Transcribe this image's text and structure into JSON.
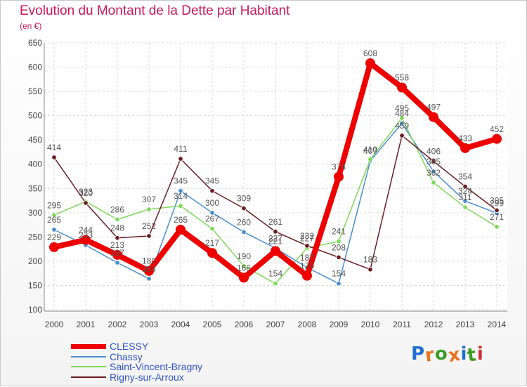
{
  "header": {
    "title": "Evolution du Montant de la Dette par Habitant",
    "subtitle": "(en €)"
  },
  "brand": {
    "logo_letters": [
      "P",
      "r",
      "o",
      "x",
      "i",
      "t",
      "i"
    ],
    "logo_colors": [
      "#1f6fd1",
      "#e8731e",
      "#3a9d23",
      "#e8731e",
      "#1f6fd1",
      "#3a9d23",
      "#d12f2f"
    ]
  },
  "chart_data": {
    "type": "line",
    "title": "Evolution du Montant de la Dette par Habitant",
    "ylabel": "(en €)",
    "xlabel": "",
    "x": [
      "2000",
      "2001",
      "2002",
      "2003",
      "2004",
      "2005",
      "2006",
      "2007",
      "2008",
      "2009",
      "2010",
      "2011",
      "2012",
      "2013",
      "2014"
    ],
    "ylim": [
      100,
      650
    ],
    "yticks": [
      100,
      150,
      200,
      250,
      300,
      350,
      400,
      450,
      500,
      550,
      600,
      650
    ],
    "grid": true,
    "legend": "bottom-left",
    "series": [
      {
        "name": "CLESSY",
        "color": "#ee0000",
        "values": [
          229,
          244,
          213,
          180,
          265,
          217,
          166,
          221,
          170,
          374,
          608,
          558,
          497,
          433,
          452
        ],
        "labels": [
          "229",
          "244",
          "213",
          "180",
          "265",
          "217",
          "166",
          "221",
          "170",
          "374",
          "608",
          "558",
          "497",
          "433",
          "452"
        ]
      },
      {
        "name": "Chassy",
        "color": "#4a8ed0",
        "values": [
          265,
          233,
          197,
          164,
          345,
          300,
          260,
          227,
          187,
          154,
          407,
          484,
          385,
          324,
          299
        ],
        "labels": [
          "265",
          "233",
          "197",
          "164",
          "345",
          "300",
          "260",
          "227",
          "187",
          "154",
          "407",
          "484",
          "385",
          "324",
          "299"
        ]
      },
      {
        "name": "Saint-Vincent-Bragny",
        "color": "#7ed957",
        "values": [
          295,
          323,
          286,
          307,
          314,
          267,
          190,
          154,
          227,
          241,
          410,
          495,
          362,
          311,
          271
        ],
        "labels": [
          "295",
          "323",
          "286",
          "307",
          "314",
          "267",
          "190",
          "154",
          "227",
          "241",
          "410",
          "495",
          "362",
          "311",
          "271"
        ]
      },
      {
        "name": "Rigny-sur-Arroux",
        "color": "#6b1d24",
        "values": [
          414,
          320,
          248,
          252,
          411,
          345,
          309,
          261,
          232,
          208,
          183,
          459,
          406,
          354,
          305
        ],
        "labels": [
          "414",
          "320",
          "248",
          "252",
          "411",
          "345",
          "309",
          "261",
          "232",
          "208",
          "183",
          "459",
          "406",
          "354",
          "305"
        ]
      }
    ]
  }
}
